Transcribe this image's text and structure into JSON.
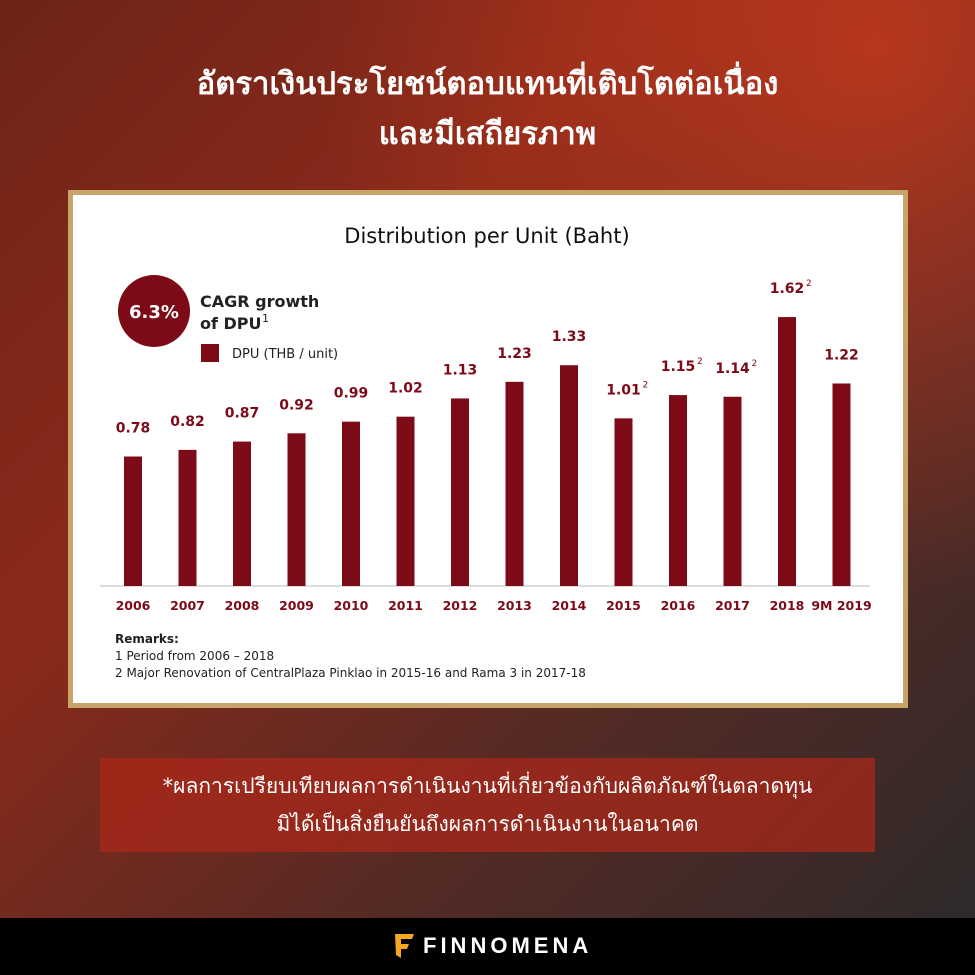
{
  "header": {
    "line1": "อัตราเงินประโยชน์ตอบแทนที่เติบโตต่อเนื่อง",
    "line2": "และมีเสถียรภาพ"
  },
  "chart_data": {
    "type": "bar",
    "title": "Distribution per Unit (Baht)",
    "categories": [
      "2006",
      "2007",
      "2008",
      "2009",
      "2010",
      "2011",
      "2012",
      "2013",
      "2014",
      "2015",
      "2016",
      "2017",
      "2018",
      "9M 2019"
    ],
    "values": [
      0.78,
      0.82,
      0.87,
      0.92,
      0.99,
      1.02,
      1.13,
      1.23,
      1.33,
      1.01,
      1.15,
      1.14,
      1.62,
      1.22
    ],
    "footnote_marks": [
      "",
      "",
      "",
      "",
      "",
      "",
      "",
      "",
      "",
      "2",
      "2",
      "2",
      "2",
      ""
    ],
    "legend": "DPU (THB / unit)",
    "badge": {
      "value": "6.3%",
      "label_line1": "CAGR growth",
      "label_line2": "of DPU",
      "mark": "1"
    },
    "ylim": [
      0,
      1.7
    ],
    "color": "#7d0a17",
    "remarks": {
      "heading": "Remarks:",
      "items": [
        "1 Period from 2006 – 2018",
        "2 Major Renovation of CentralPlaza Pinklao in 2015-16 and Rama 3 in 2017-18"
      ]
    }
  },
  "disclaimer": {
    "line1": "*ผลการเปรียบเทียบผลการดำเนินงานที่เกี่ยวข้องกับผลิตภัณฑ์ในตลาดทุน",
    "line2": "มิได้เป็นสิ่งยืนยันถึงผลการดำเนินงานในอนาคต"
  },
  "footer": {
    "brand": "FINNOMENA"
  }
}
